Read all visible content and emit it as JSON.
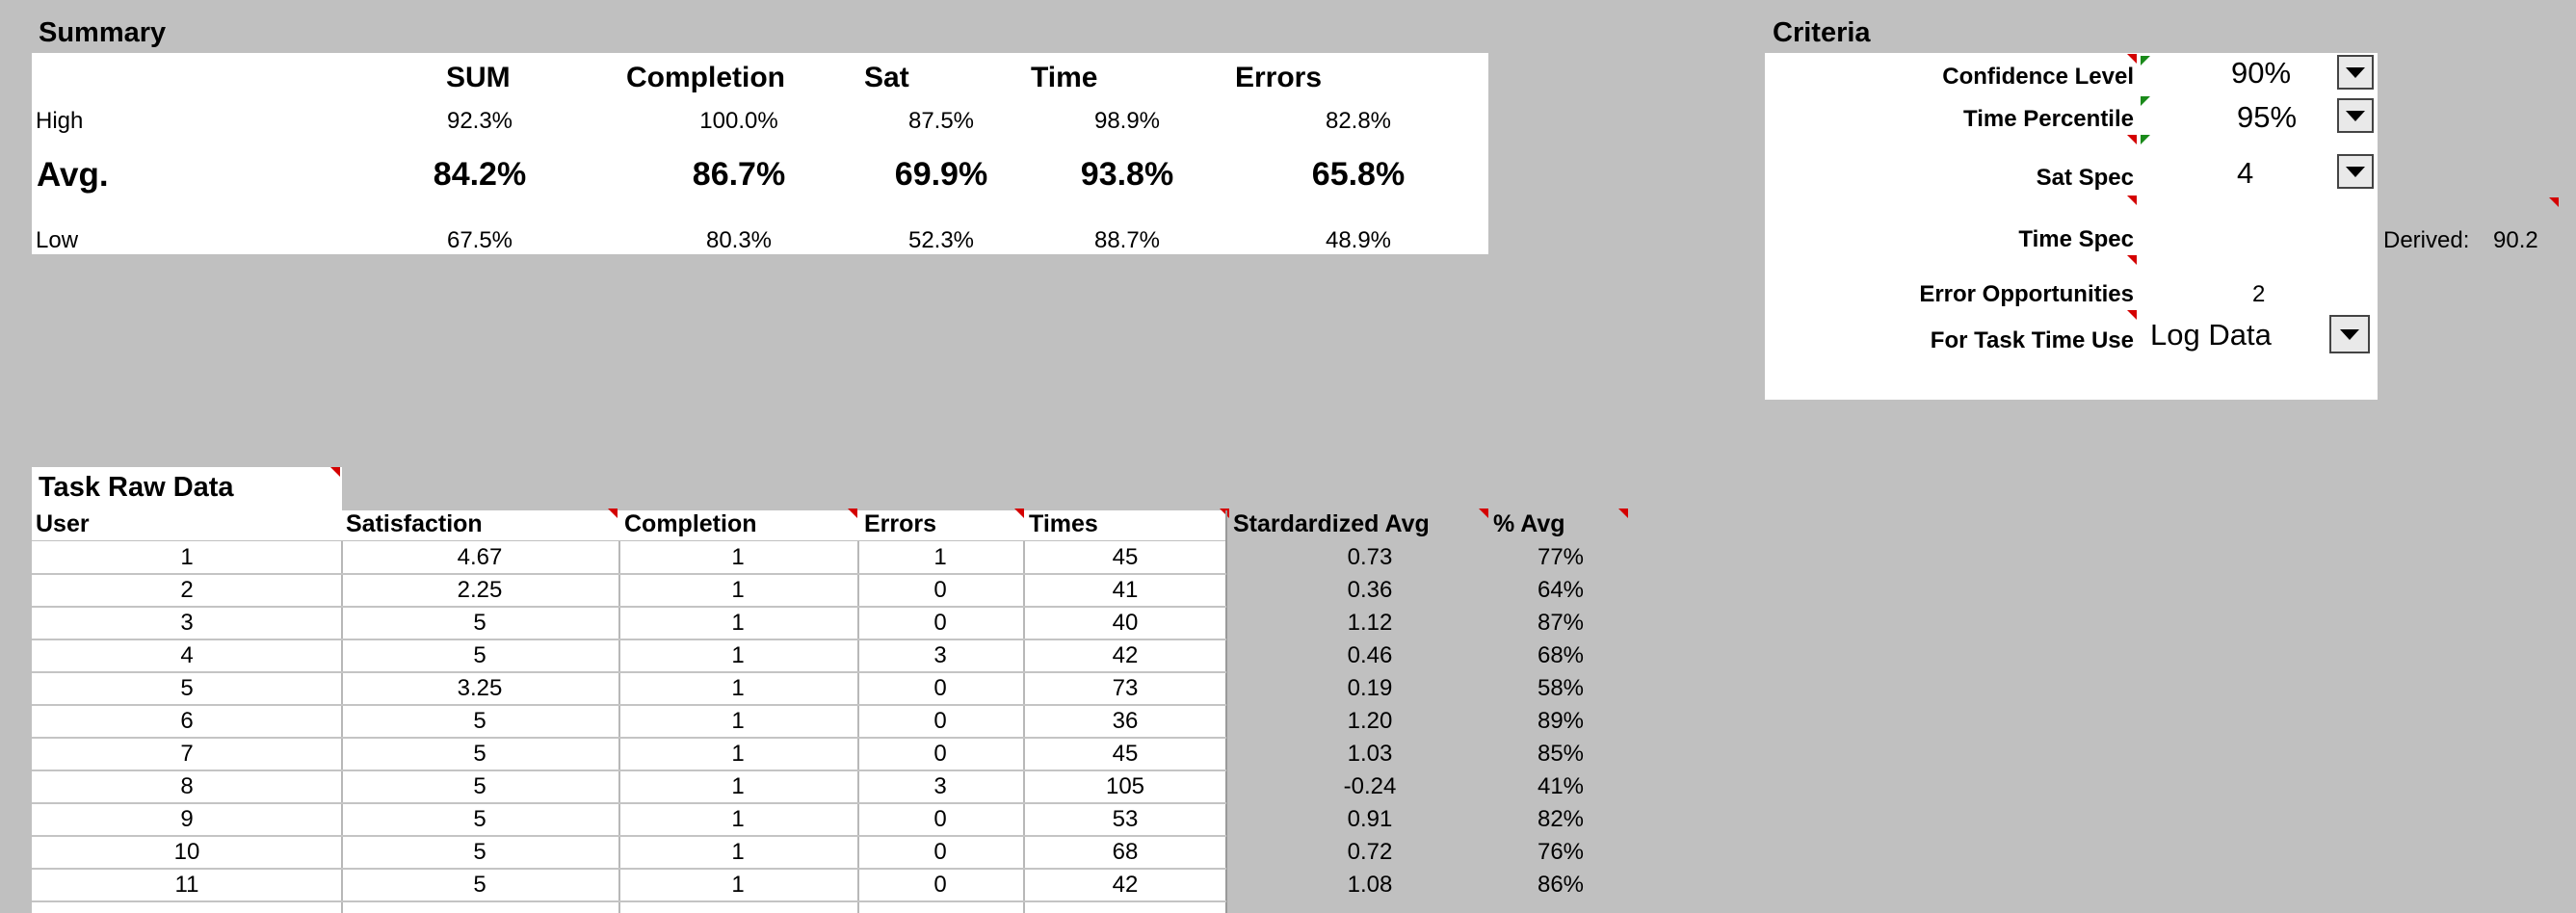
{
  "summary": {
    "title": "Summary",
    "headers": [
      "SUM",
      "Completion",
      "Sat",
      "Time",
      "Errors"
    ],
    "rows": {
      "high": {
        "label": "High",
        "values": [
          "92.3%",
          "100.0%",
          "87.5%",
          "98.9%",
          "82.8%"
        ]
      },
      "avg": {
        "label": "Avg.",
        "values": [
          "84.2%",
          "86.7%",
          "69.9%",
          "93.8%",
          "65.8%"
        ]
      },
      "low": {
        "label": "Low",
        "values": [
          "67.5%",
          "80.3%",
          "52.3%",
          "88.7%",
          "48.9%"
        ]
      }
    }
  },
  "criteria": {
    "title": "Criteria",
    "confidence_level": {
      "label": "Confidence Level",
      "value": "90%"
    },
    "time_percentile": {
      "label": "Time Percentile",
      "value": "95%"
    },
    "sat_spec": {
      "label": "Sat Spec",
      "value": "4"
    },
    "time_spec": {
      "label": "Time Spec",
      "value": ""
    },
    "derived": {
      "label": "Derived:",
      "value": "90.2"
    },
    "error_opportunities": {
      "label": "Error Opportunities",
      "value": "2"
    },
    "task_time_use": {
      "label": "For Task Time Use",
      "value": "Log Data"
    }
  },
  "raw": {
    "title": "Task Raw Data",
    "headers": [
      "User",
      "Satisfaction",
      "Completion",
      "Errors",
      "Times",
      "Stardardized Avg",
      "% Avg"
    ],
    "rows": [
      [
        "1",
        "4.67",
        "1",
        "1",
        "45",
        "0.73",
        "77%"
      ],
      [
        "2",
        "2.25",
        "1",
        "0",
        "41",
        "0.36",
        "64%"
      ],
      [
        "3",
        "5",
        "1",
        "0",
        "40",
        "1.12",
        "87%"
      ],
      [
        "4",
        "5",
        "1",
        "3",
        "42",
        "0.46",
        "68%"
      ],
      [
        "5",
        "3.25",
        "1",
        "0",
        "73",
        "0.19",
        "58%"
      ],
      [
        "6",
        "5",
        "1",
        "0",
        "36",
        "1.20",
        "89%"
      ],
      [
        "7",
        "5",
        "1",
        "0",
        "45",
        "1.03",
        "85%"
      ],
      [
        "8",
        "5",
        "1",
        "3",
        "105",
        "-0.24",
        "41%"
      ],
      [
        "9",
        "5",
        "1",
        "0",
        "53",
        "0.91",
        "82%"
      ],
      [
        "10",
        "5",
        "1",
        "0",
        "68",
        "0.72",
        "76%"
      ],
      [
        "11",
        "5",
        "1",
        "0",
        "42",
        "1.08",
        "86%"
      ]
    ]
  },
  "colors": {
    "sheet_bg": "#c0c0c0",
    "cell_bg": "#ffffff",
    "comment_marker": "#d40000",
    "error_marker": "#1a8a1a"
  }
}
